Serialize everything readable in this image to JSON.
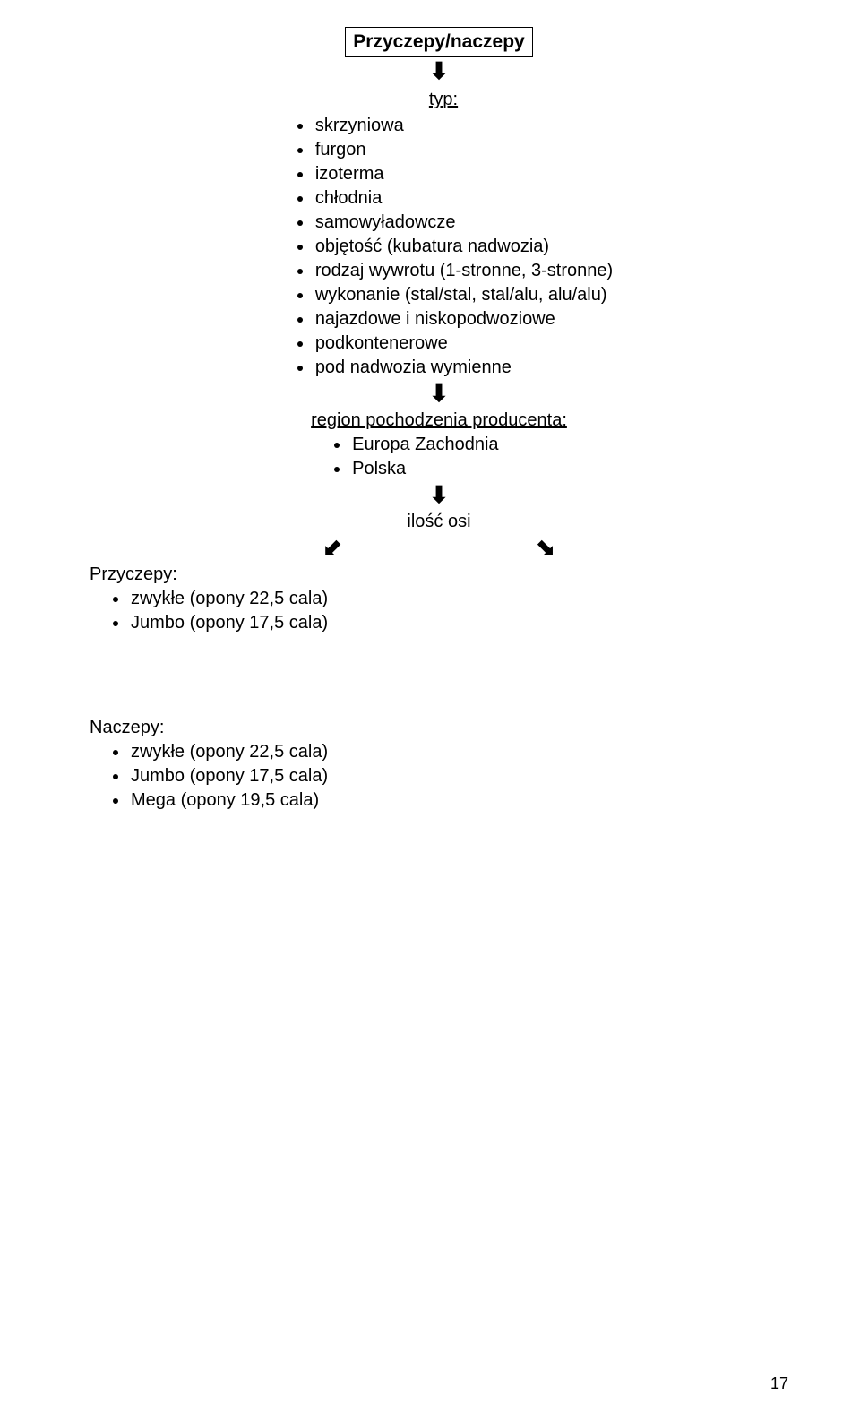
{
  "title": "Przyczepy/naczepy",
  "arrow_down_glyph": "⬇",
  "arrow_down_left_glyph": "⬋",
  "arrow_down_right_glyph": "⬊",
  "typ": {
    "heading": "typ:",
    "items": [
      "skrzyniowa",
      "furgon",
      "izoterma",
      "chłodnia",
      "samowyładowcze"
    ],
    "sub_items": [
      "objętość (kubatura nadwozia)",
      "rodzaj wywrotu (1-stronne, 3-stronne)",
      "wykonanie (stal/stal, stal/alu, alu/alu)",
      "najazdowe i niskopodwoziowe",
      "podkontenerowe",
      "pod nadwozia wymienne"
    ]
  },
  "region": {
    "heading": "region pochodzenia producenta:",
    "items": [
      "Europa Zachodnia",
      "Polska"
    ]
  },
  "ilosc_osi_label": "ilość osi",
  "przyczepy": {
    "heading": "Przyczepy:",
    "items": [
      "zwykłe (opony 22,5 cala)",
      "Jumbo (opony 17,5 cala)"
    ]
  },
  "naczepy": {
    "heading": "Naczepy:",
    "items": [
      "zwykłe (opony 22,5 cala)",
      "Jumbo (opony 17,5 cala)",
      "Mega (opony 19,5 cala)"
    ]
  },
  "page_number": "17",
  "colors": {
    "text": "#000000",
    "background": "#ffffff",
    "border": "#000000"
  }
}
